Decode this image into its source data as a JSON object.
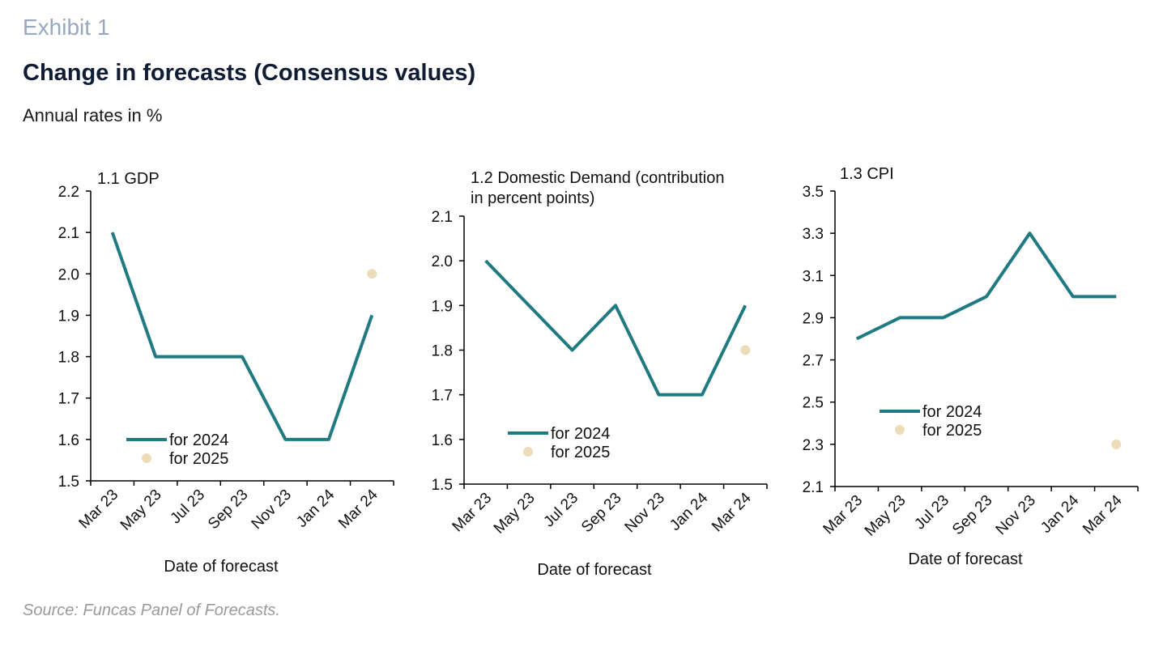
{
  "header": {
    "exhibit": "Exhibit 1",
    "title": "Change in forecasts (Consensus values)",
    "subtitle": "Annual rates in %"
  },
  "footer": {
    "source": "Source: Funcas Panel of Forecasts."
  },
  "colors": {
    "line_2024": "#1f7a82",
    "dot_2025": "#eddcb8",
    "axis": "#000000"
  },
  "chart_data": [
    {
      "id": "gdp",
      "type": "line",
      "title": "1.1 GDP",
      "xlabel": "Date of forecast",
      "categories": [
        "Mar 23",
        "May 23",
        "Jul 23",
        "Sep 23",
        "Nov 23",
        "Jan 24",
        "Mar 24"
      ],
      "ylim": [
        1.5,
        2.2
      ],
      "yticks": [
        "1.5",
        "1.6",
        "1.7",
        "1.8",
        "1.9",
        "2.0",
        "2.1",
        "2.2"
      ],
      "series": [
        {
          "name": "for 2024",
          "values": [
            2.1,
            1.8,
            1.8,
            1.8,
            1.6,
            1.6,
            1.9
          ]
        },
        {
          "name": "for 2025",
          "values": [
            null,
            null,
            null,
            null,
            null,
            null,
            2.0
          ]
        }
      ],
      "legend": "bottom-left"
    },
    {
      "id": "domestic-demand",
      "type": "line",
      "title": "1.2 Domestic Demand (contribution in percent points)",
      "xlabel": "Date of forecast",
      "categories": [
        "Mar 23",
        "May 23",
        "Jul 23",
        "Sep 23",
        "Nov 23",
        "Jan 24",
        "Mar 24"
      ],
      "ylim": [
        1.5,
        2.1
      ],
      "yticks": [
        "1.5",
        "1.6",
        "1.7",
        "1.8",
        "1.9",
        "2.0",
        "2.1"
      ],
      "series": [
        {
          "name": "for 2024",
          "values": [
            2.0,
            1.9,
            1.8,
            1.9,
            1.7,
            1.7,
            1.9
          ]
        },
        {
          "name": "for 2025",
          "values": [
            null,
            null,
            null,
            null,
            null,
            null,
            1.8
          ]
        }
      ],
      "legend": "bottom-left"
    },
    {
      "id": "cpi",
      "type": "line",
      "title": "1.3 CPI",
      "xlabel": "Date of forecast",
      "categories": [
        "Mar 23",
        "May 23",
        "Jul 23",
        "Sep 23",
        "Nov 23",
        "Jan 24",
        "Mar 24"
      ],
      "ylim": [
        2.1,
        3.5
      ],
      "yticks": [
        "2.1",
        "2.3",
        "2.5",
        "2.7",
        "2.9",
        "3.1",
        "3.3",
        "3.5"
      ],
      "series": [
        {
          "name": "for 2024",
          "values": [
            2.8,
            2.9,
            2.9,
            3.0,
            3.3,
            3.0,
            3.0
          ]
        },
        {
          "name": "for 2025",
          "values": [
            null,
            null,
            null,
            null,
            null,
            null,
            2.3
          ]
        }
      ],
      "legend": "bottom-left"
    }
  ]
}
